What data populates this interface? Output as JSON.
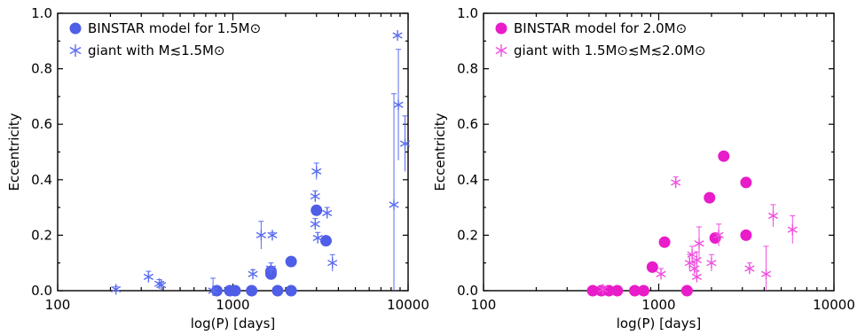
{
  "chart_data": [
    {
      "type": "scatter",
      "xscale": "log",
      "xlim": [
        100,
        10000
      ],
      "ylim": [
        0.0,
        1.0
      ],
      "xlabel": "log(P) [days]",
      "ylabel": "Eccentricity",
      "xticks": [
        "100",
        "1000",
        "10000"
      ],
      "yticks": [
        "0.0",
        "0.2",
        "0.4",
        "0.6",
        "0.8",
        "1.0"
      ],
      "legend_position": "top-left",
      "series": [
        {
          "name": "BINSTAR model for 1.5M⊙",
          "marker": "circle",
          "color": "#4f5ee6",
          "points": [
            {
              "x": 810,
              "y": 0.0
            },
            {
              "x": 960,
              "y": 0.0
            },
            {
              "x": 1030,
              "y": 0.0
            },
            {
              "x": 1280,
              "y": 0.0
            },
            {
              "x": 1650,
              "y": 0.06
            },
            {
              "x": 1650,
              "y": 0.07
            },
            {
              "x": 1800,
              "y": 0.0
            },
            {
              "x": 2150,
              "y": 0.105
            },
            {
              "x": 2150,
              "y": 0.0
            },
            {
              "x": 3000,
              "y": 0.29
            },
            {
              "x": 3400,
              "y": 0.18
            }
          ]
        },
        {
          "name": "giant with M≲1.5M⊙",
          "marker": "asterisk",
          "color": "#5a6df0",
          "points": [
            {
              "x": 215,
              "y": 0.005,
              "err": 0.01
            },
            {
              "x": 330,
              "y": 0.05,
              "err": 0.02
            },
            {
              "x": 380,
              "y": 0.025,
              "err": 0.015
            },
            {
              "x": 390,
              "y": 0.02,
              "err": 0.01
            },
            {
              "x": 770,
              "y": 0.0,
              "err": 0.045
            },
            {
              "x": 1300,
              "y": 0.06,
              "err": 0.015
            },
            {
              "x": 1450,
              "y": 0.2,
              "err": 0.05
            },
            {
              "x": 1680,
              "y": 0.2,
              "err": 0.01
            },
            {
              "x": 1650,
              "y": 0.08,
              "err": 0.02
            },
            {
              "x": 2950,
              "y": 0.34,
              "err": 0.02
            },
            {
              "x": 3000,
              "y": 0.43,
              "err": 0.03
            },
            {
              "x": 2950,
              "y": 0.24,
              "err": 0.02
            },
            {
              "x": 3050,
              "y": 0.19,
              "err": 0.02
            },
            {
              "x": 3450,
              "y": 0.28,
              "err": 0.02
            },
            {
              "x": 3700,
              "y": 0.1,
              "err": 0.03
            },
            {
              "x": 8300,
              "y": 0.31,
              "err": 0.4
            },
            {
              "x": 8700,
              "y": 0.92,
              "err": 0.0
            },
            {
              "x": 8800,
              "y": 0.67,
              "err": 0.2
            },
            {
              "x": 9600,
              "y": 0.53,
              "err": 0.1
            }
          ]
        }
      ]
    },
    {
      "type": "scatter",
      "xscale": "log",
      "xlim": [
        100,
        10000
      ],
      "ylim": [
        0.0,
        1.0
      ],
      "xlabel": "log(P) [days]",
      "ylabel": "Eccentricity",
      "xticks": [
        "100",
        "1000",
        "10000"
      ],
      "yticks": [
        "0.0",
        "0.2",
        "0.4",
        "0.6",
        "0.8",
        "1.0"
      ],
      "legend_position": "top-left",
      "series": [
        {
          "name": "BINSTAR model for 2.0M⊙",
          "marker": "circle",
          "color": "#e81cc9",
          "points": [
            {
              "x": 420,
              "y": 0.0
            },
            {
              "x": 470,
              "y": 0.0
            },
            {
              "x": 520,
              "y": 0.0
            },
            {
              "x": 580,
              "y": 0.0
            },
            {
              "x": 730,
              "y": 0.0
            },
            {
              "x": 820,
              "y": 0.0
            },
            {
              "x": 920,
              "y": 0.085
            },
            {
              "x": 1080,
              "y": 0.175
            },
            {
              "x": 1450,
              "y": 0.0
            },
            {
              "x": 1950,
              "y": 0.335
            },
            {
              "x": 2100,
              "y": 0.19
            },
            {
              "x": 2350,
              "y": 0.485
            },
            {
              "x": 3150,
              "y": 0.39
            },
            {
              "x": 3150,
              "y": 0.2
            }
          ]
        },
        {
          "name": "giant with 1.5M⊙≲M≲2.0M⊙",
          "marker": "asterisk",
          "color": "#ef4fe0",
          "points": [
            {
              "x": 480,
              "y": 0.005,
              "err": 0.01
            },
            {
              "x": 1030,
              "y": 0.06,
              "err": 0.02
            },
            {
              "x": 1250,
              "y": 0.39,
              "err": 0.02
            },
            {
              "x": 1500,
              "y": 0.1,
              "err": 0.03
            },
            {
              "x": 1550,
              "y": 0.13,
              "err": 0.03
            },
            {
              "x": 1600,
              "y": 0.08,
              "err": 0.02
            },
            {
              "x": 1650,
              "y": 0.05,
              "err": 0.02
            },
            {
              "x": 1700,
              "y": 0.17,
              "err": 0.06
            },
            {
              "x": 1650,
              "y": 0.11,
              "err": 0.03
            },
            {
              "x": 2000,
              "y": 0.1,
              "err": 0.03
            },
            {
              "x": 2200,
              "y": 0.2,
              "err": 0.04
            },
            {
              "x": 3300,
              "y": 0.08,
              "err": 0.02
            },
            {
              "x": 4100,
              "y": 0.06,
              "err": 0.1
            },
            {
              "x": 4500,
              "y": 0.27,
              "err": 0.04
            },
            {
              "x": 5800,
              "y": 0.22,
              "err": 0.05
            }
          ]
        }
      ]
    }
  ]
}
